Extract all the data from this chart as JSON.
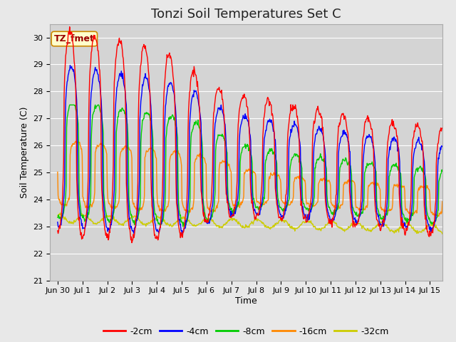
{
  "title": "Tonzi Soil Temperatures Set C",
  "xlabel": "Time",
  "ylabel": "Soil Temperature (C)",
  "ylim": [
    21.0,
    30.5
  ],
  "xlim": [
    -0.3,
    15.5
  ],
  "yticks": [
    21.0,
    22.0,
    23.0,
    24.0,
    25.0,
    26.0,
    27.0,
    28.0,
    29.0,
    30.0
  ],
  "xtick_labels": [
    "Jun 30",
    "Jul 1",
    "Jul 2",
    "Jul 3",
    "Jul 4",
    "Jul 5",
    "Jul 6",
    "Jul 7",
    "Jul 8",
    "Jul 9",
    "Jul 10",
    "Jul 11",
    "Jul 12",
    "Jul 13",
    "Jul 14",
    "Jul 15"
  ],
  "xtick_positions": [
    0,
    1,
    2,
    3,
    4,
    5,
    6,
    7,
    8,
    9,
    10,
    11,
    12,
    13,
    14,
    15
  ],
  "legend_labels": [
    "-2cm",
    "-4cm",
    "-8cm",
    "-16cm",
    "-32cm"
  ],
  "line_colors": [
    "#ff0000",
    "#0000ff",
    "#00cc00",
    "#ff8800",
    "#cccc00"
  ],
  "annotation_text": "TZ_fmet",
  "bg_color": "#e8e8e8",
  "plot_bg_color": "#d4d4d4",
  "grid_color": "#ffffff",
  "title_fontsize": 13,
  "label_fontsize": 9,
  "tick_fontsize": 8,
  "legend_fontsize": 9
}
